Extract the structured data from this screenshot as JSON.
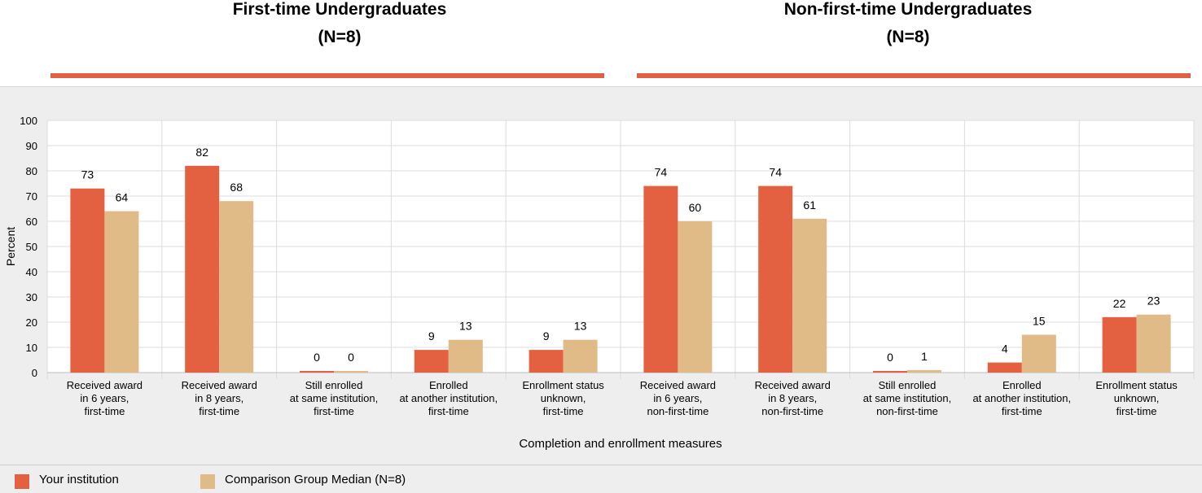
{
  "groups": [
    {
      "title": "First-time Undergraduates",
      "subtitle": "(N=8)"
    },
    {
      "title": "Non-first-time Undergraduates",
      "subtitle": "(N=8)"
    }
  ],
  "legend": {
    "institution": "Your institution",
    "median": "Comparison Group Median (N=8)"
  },
  "colors": {
    "institution": "#e36141",
    "median": "#e0ba87",
    "accent_bar": "#e06045"
  },
  "chart_data": {
    "type": "bar",
    "xlabel": "Completion and enrollment measures",
    "ylabel": "Percent",
    "ylim": [
      0,
      100
    ],
    "yticks": [
      0,
      10,
      20,
      30,
      40,
      50,
      60,
      70,
      80,
      90,
      100
    ],
    "grid": true,
    "categories": [
      [
        "Received award",
        "in 6 years,",
        "first-time"
      ],
      [
        "Received award",
        "in 8 years,",
        "first-time"
      ],
      [
        "Still enrolled",
        "at same institution,",
        "first-time"
      ],
      [
        "Enrolled",
        "at another institution,",
        "first-time"
      ],
      [
        "Enrollment status",
        "unknown,",
        "first-time"
      ],
      [
        "Received award",
        "in 6 years,",
        "non-first-time"
      ],
      [
        "Received award",
        "in 8 years,",
        "non-first-time"
      ],
      [
        "Still enrolled",
        "at same institution,",
        "non-first-time"
      ],
      [
        "Enrolled",
        "at another institution,",
        "first-time"
      ],
      [
        "Enrollment status",
        "unknown,",
        "first-time"
      ]
    ],
    "series": [
      {
        "name": "Your institution",
        "values": [
          73,
          82,
          0,
          9,
          9,
          74,
          74,
          0,
          4,
          22
        ]
      },
      {
        "name": "Comparison Group Median (N=8)",
        "values": [
          64,
          68,
          0,
          13,
          13,
          60,
          61,
          1,
          15,
          23
        ]
      }
    ]
  }
}
